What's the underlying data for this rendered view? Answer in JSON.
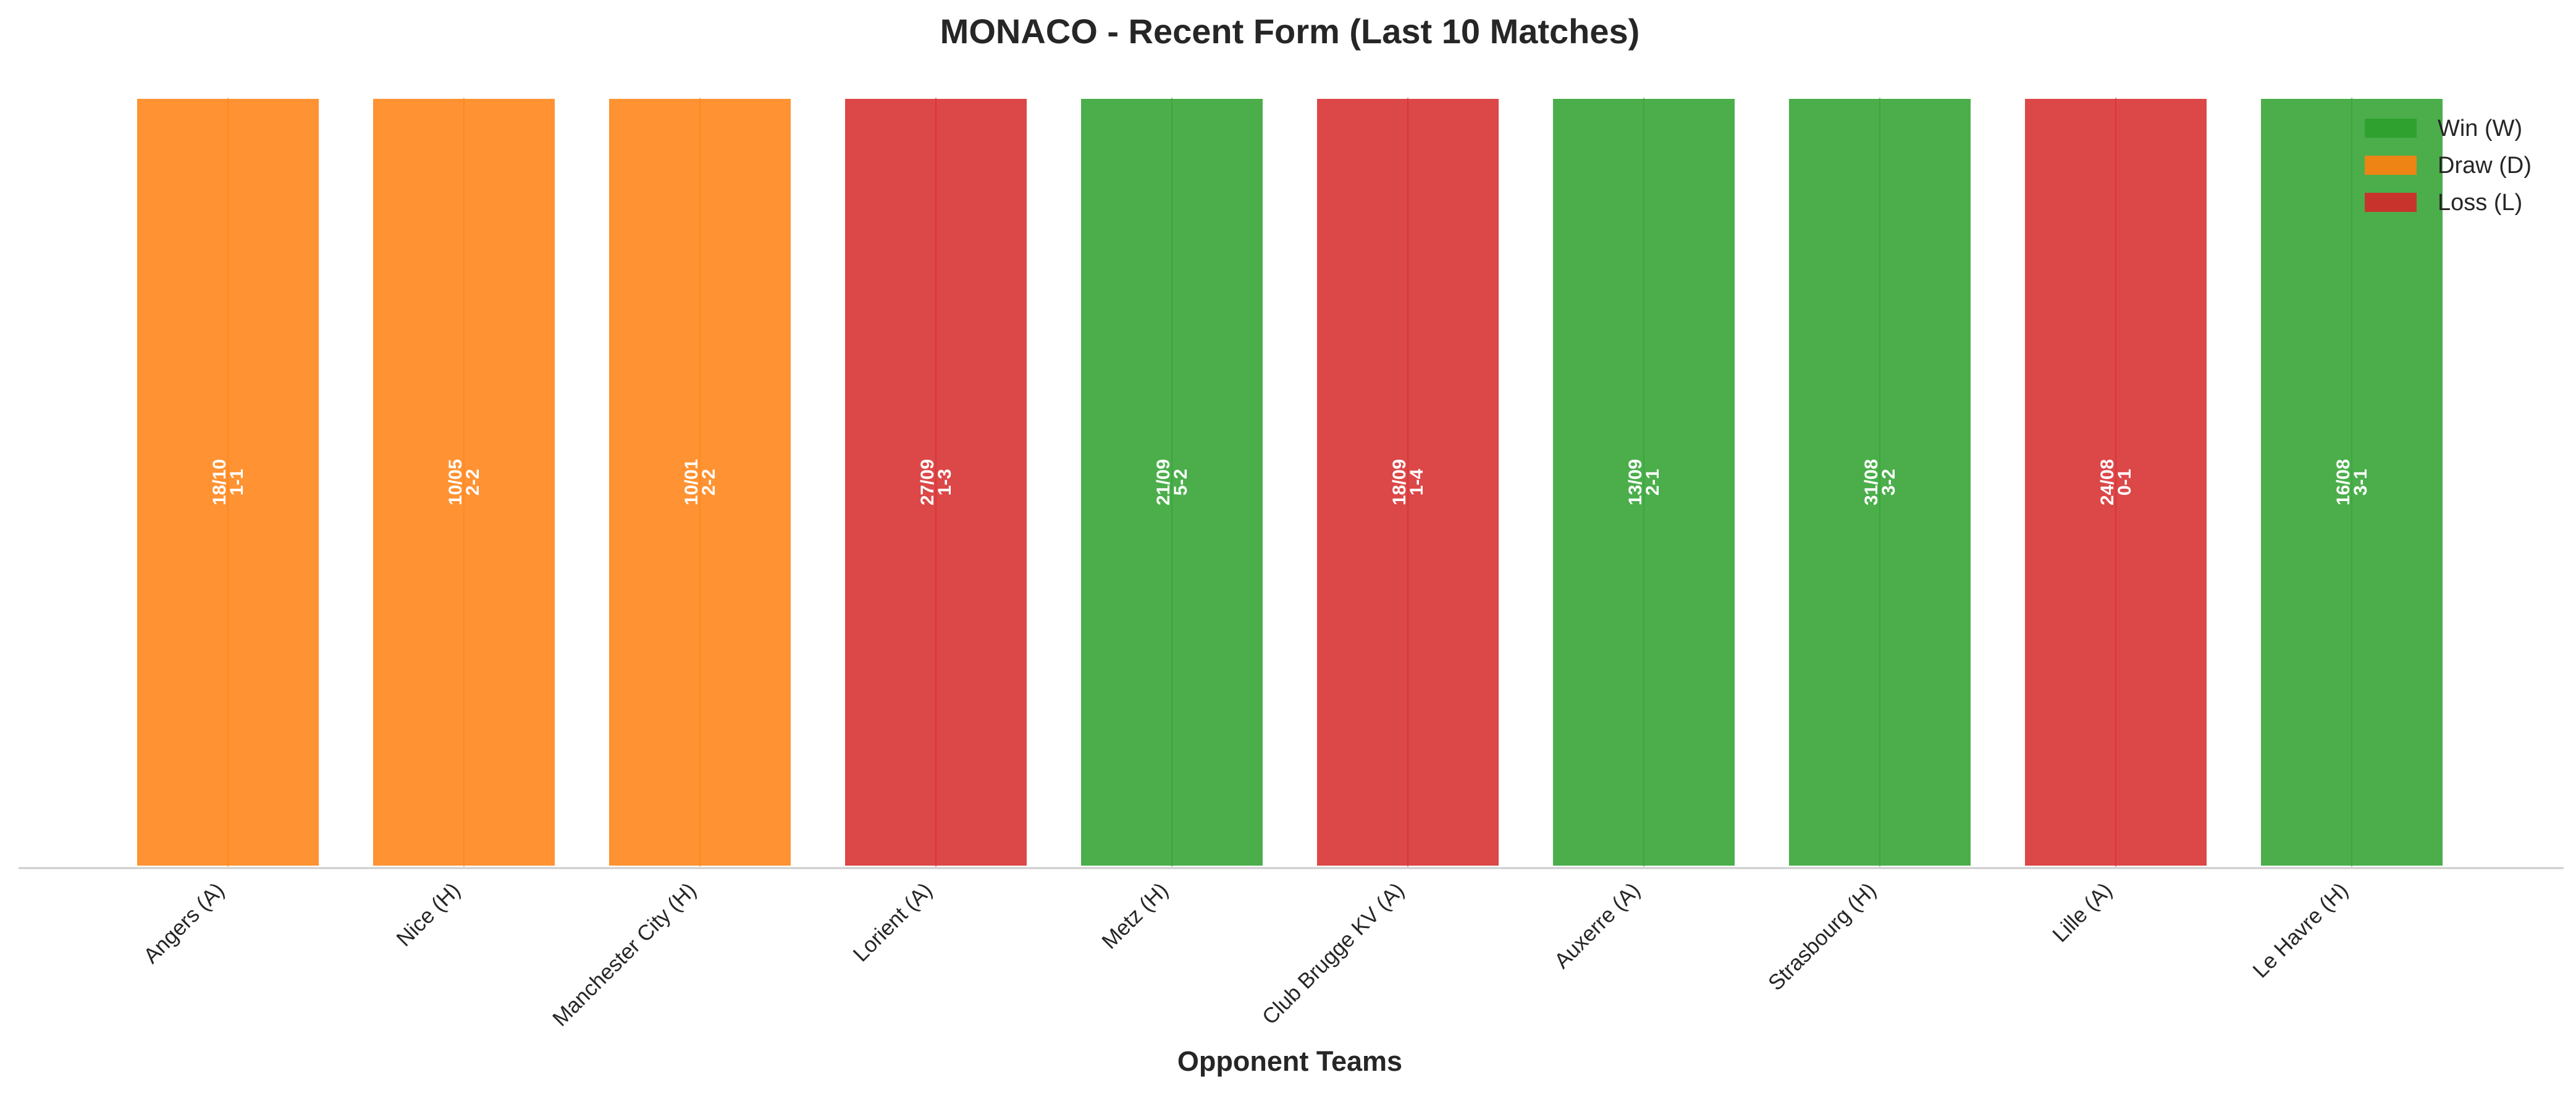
{
  "chart_data": {
    "type": "bar",
    "title": "MONACO - Recent Form (Last 10 Matches)",
    "xlabel": "Opponent Teams",
    "ylabel": "",
    "categories": [
      "Angers (A)",
      "Nice (H)",
      "Manchester City (H)",
      "Lorient (A)",
      "Metz (H)",
      "Club Brugge KV (A)",
      "Auxerre (A)",
      "Strasbourg (H)",
      "Lille (A)",
      "Le Havre (H)"
    ],
    "values": [
      1,
      1,
      1,
      1,
      1,
      1,
      1,
      1,
      1,
      1
    ],
    "results": [
      "D",
      "D",
      "D",
      "L",
      "W",
      "L",
      "W",
      "W",
      "L",
      "W"
    ],
    "dates": [
      "18/10",
      "10/05",
      "10/01",
      "27/09",
      "21/09",
      "18/09",
      "13/09",
      "31/08",
      "24/08",
      "16/08"
    ],
    "scores": [
      "1-1",
      "2-2",
      "2-2",
      "1-3",
      "5-2",
      "1-4",
      "2-1",
      "3-2",
      "0-1",
      "3-1"
    ],
    "colors": {
      "W": "#2ca02c",
      "D": "#ff7f0e",
      "L": "#d62728"
    },
    "legend": {
      "position": "top-right",
      "entries": [
        {
          "key": "W",
          "label": "Win (W)"
        },
        {
          "key": "D",
          "label": "Draw (D)"
        },
        {
          "key": "L",
          "label": "Loss (L)"
        }
      ]
    },
    "grid": false,
    "ylim": [
      0,
      1
    ]
  }
}
